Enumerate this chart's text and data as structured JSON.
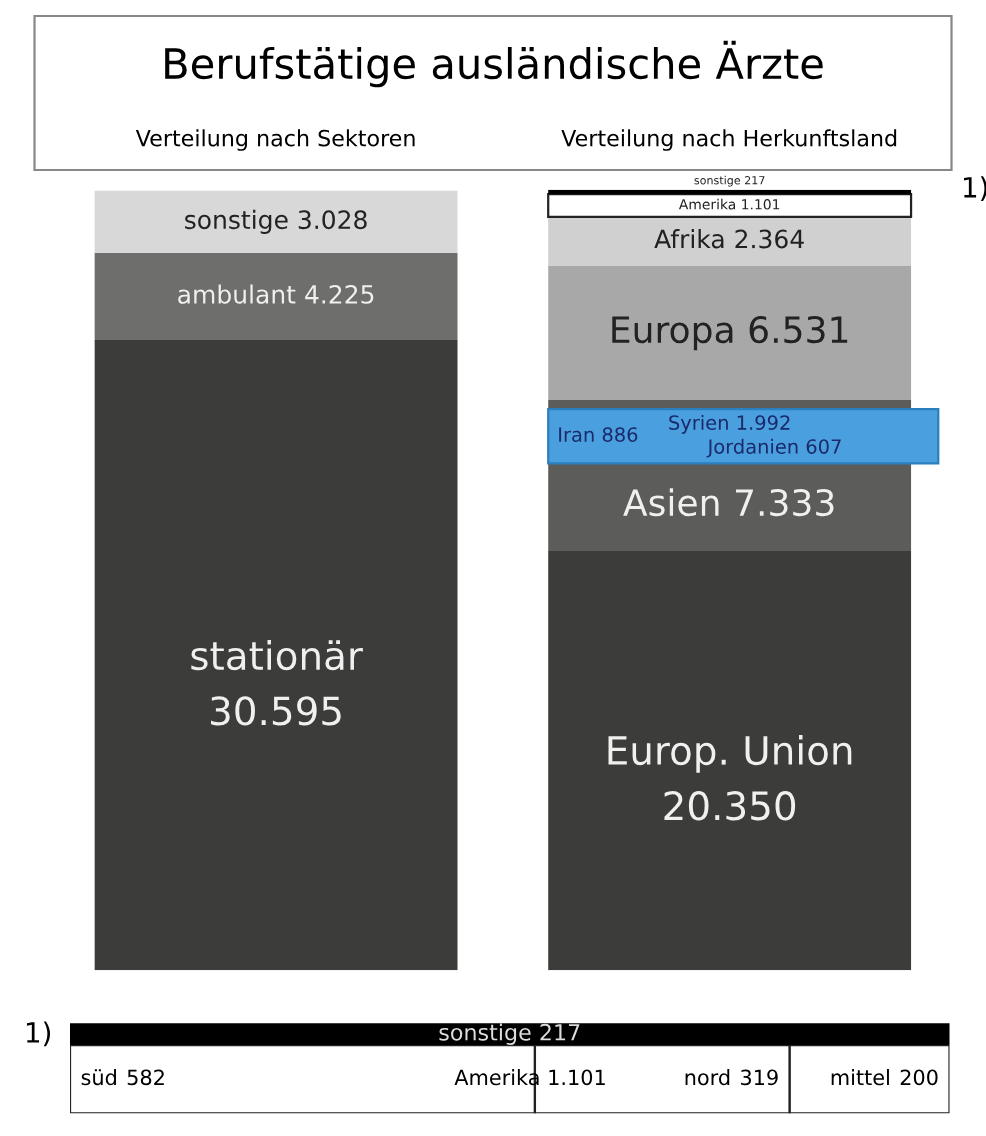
{
  "chart_data": [
    {
      "type": "bar",
      "title": "Berufstätige ausländische Ärzte",
      "stacked": true,
      "categories": [
        "Verteilung nach Sektoren",
        "Verteilung nach Herkunftsland"
      ],
      "series": [
        {
          "name": "stationär",
          "color": "#3c3c3a",
          "values": [
            30595,
            null
          ],
          "value_labels": [
            "30.595",
            null
          ]
        },
        {
          "name": "ambulant",
          "color": "#6e6e6c",
          "values": [
            4225,
            null
          ],
          "value_labels": [
            "4.225",
            null
          ]
        },
        {
          "name": "sonstige",
          "color": "#d8d8d8",
          "values": [
            3028,
            null
          ],
          "value_labels": [
            "3.028",
            null
          ]
        },
        {
          "name": "Europ. Union",
          "color": "#3c3c3a",
          "values": [
            null,
            20350
          ],
          "value_labels": [
            null,
            "20.350"
          ]
        },
        {
          "name": "Asien",
          "color": "#5c5c5a",
          "values": [
            null,
            7333
          ],
          "value_labels": [
            null,
            "7.333"
          ]
        },
        {
          "name": "Europa",
          "color": "#a8a8a8",
          "values": [
            null,
            6531
          ],
          "value_labels": [
            null,
            "6.531"
          ]
        },
        {
          "name": "Afrika",
          "color": "#d0d0d0",
          "values": [
            null,
            2364
          ],
          "value_labels": [
            null,
            "2.364"
          ]
        },
        {
          "name": "Amerika",
          "color": "#ffffff",
          "values": [
            null,
            1101
          ],
          "value_labels": [
            null,
            "1.101"
          ]
        },
        {
          "name": "sonstige",
          "color": "#000000",
          "values": [
            null,
            217
          ],
          "value_labels": [
            null,
            "217"
          ]
        }
      ],
      "annotations": [
        "Iran 886",
        "Syrien 1.992",
        "Jordanien 607",
        "1)"
      ]
    },
    {
      "type": "bar",
      "orientation": "horizontal",
      "stacked": true,
      "categories": [
        null
      ],
      "series": [
        {
          "name": "süd",
          "color": "#ffffff",
          "values": [
            582
          ],
          "value_labels": [
            "582"
          ]
        },
        {
          "name": "nord",
          "color": "#ffffff",
          "values": [
            319
          ],
          "value_labels": [
            "319"
          ]
        },
        {
          "name": "mittel",
          "color": "#ffffff",
          "values": [
            200
          ],
          "value_labels": [
            "200"
          ]
        }
      ],
      "annotations": [
        "1)",
        "sonstige 217",
        "Amerika 1.101"
      ]
    }
  ]
}
